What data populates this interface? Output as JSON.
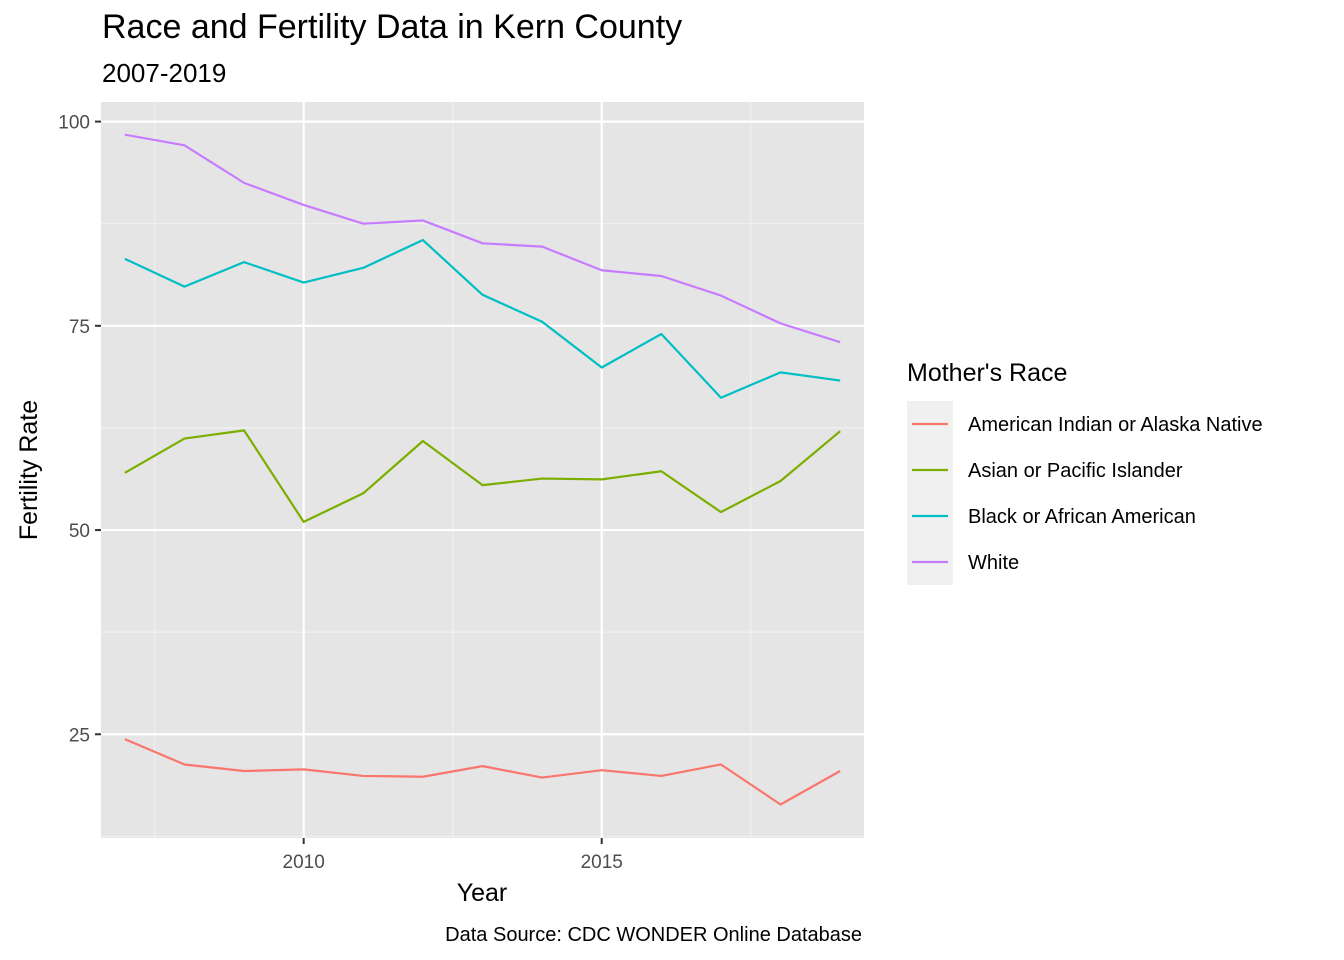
{
  "chart_data": {
    "type": "line",
    "title": "Race and Fertility Data in Kern County",
    "subtitle": "2007-2019",
    "xlabel": "Year",
    "ylabel": "Fertility Rate",
    "caption": "Data Source: CDC WONDER Online Database",
    "legend_title": "Mother's Race",
    "legend_position": "right",
    "grid": true,
    "xlim": [
      2006.6,
      2019.4
    ],
    "ylim": [
      12.3,
      102.4
    ],
    "x_ticks": [
      2010,
      2015
    ],
    "x_tick_labels": [
      "2010",
      "2015"
    ],
    "y_ticks": [
      25,
      50,
      75,
      100
    ],
    "y_tick_labels": [
      "25",
      "50",
      "75",
      "100"
    ],
    "x": [
      2007,
      2008,
      2009,
      2010,
      2011,
      2012,
      2013,
      2014,
      2015,
      2016,
      2017,
      2018,
      2019
    ],
    "series": [
      {
        "name": "American Indian or Alaska Native",
        "color": "#F8766D",
        "values": [
          24.4,
          21.3,
          20.5,
          20.7,
          19.9,
          19.8,
          21.1,
          19.7,
          20.6,
          19.9,
          21.3,
          16.4,
          20.5
        ]
      },
      {
        "name": "Asian or Pacific Islander",
        "color": "#7CAE00",
        "values": [
          57.0,
          61.2,
          62.2,
          51.0,
          54.5,
          60.9,
          55.5,
          56.3,
          56.2,
          57.2,
          52.2,
          56.0,
          62.1
        ]
      },
      {
        "name": "Black or African American",
        "color": "#00BFC4",
        "values": [
          83.2,
          79.8,
          82.8,
          80.3,
          82.1,
          85.5,
          78.8,
          75.5,
          69.9,
          74.0,
          66.2,
          69.3,
          68.3
        ]
      },
      {
        "name": "White",
        "color": "#C77CFF",
        "values": [
          98.4,
          97.1,
          92.5,
          89.8,
          87.5,
          87.9,
          85.1,
          84.7,
          81.8,
          81.1,
          78.7,
          75.3,
          73.0
        ]
      }
    ]
  }
}
